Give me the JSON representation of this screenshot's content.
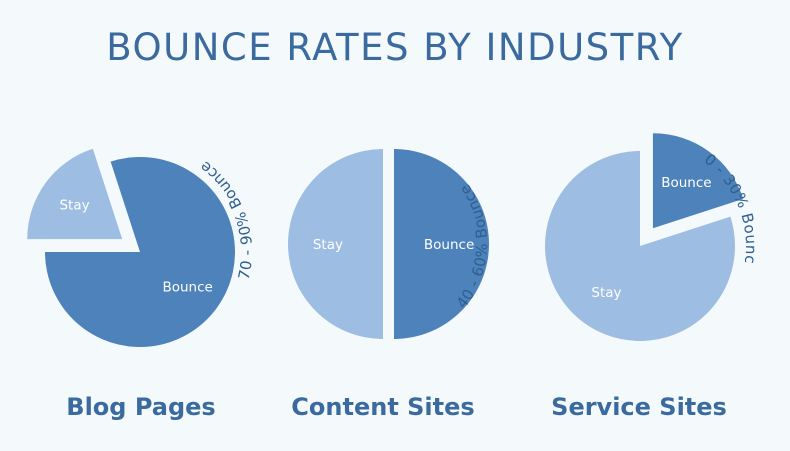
{
  "title": "BOUNCE RATES BY INDUSTRY",
  "colors": {
    "background": "#f4f9fc",
    "title": "#3a6a9e",
    "bounce": "#4d82bb",
    "stay": "#9dbde3",
    "annotation": "#2f5f8f",
    "slice_label": "#ffffff"
  },
  "chart_data": [
    {
      "type": "pie",
      "caption": "Blog Pages",
      "annotation": "70 - 90% Bounce",
      "slices": [
        {
          "label": "Stay",
          "value": 20,
          "exploded": true
        },
        {
          "label": "Bounce",
          "value": 80,
          "exploded": false
        }
      ]
    },
    {
      "type": "pie",
      "caption": "Content Sites",
      "annotation": "40 - 60% Bounce",
      "slices": [
        {
          "label": "Bounce",
          "value": 50,
          "exploded": true
        },
        {
          "label": "Stay",
          "value": 50,
          "exploded": false
        }
      ]
    },
    {
      "type": "pie",
      "caption": "Service Sites",
      "annotation": "10 - 30% Bounce",
      "slices": [
        {
          "label": "Bounce",
          "value": 20,
          "exploded": true
        },
        {
          "label": "Stay",
          "value": 80,
          "exploded": false
        }
      ]
    }
  ]
}
